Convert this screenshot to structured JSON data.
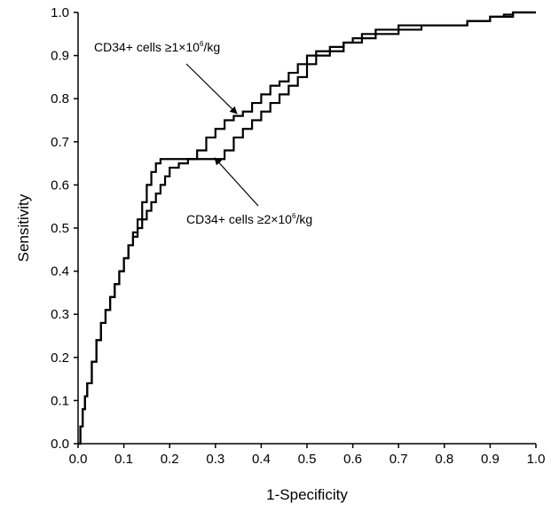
{
  "chart_data": {
    "type": "line",
    "title": "",
    "xlabel": "1-Specificity",
    "ylabel": "Sensitivity",
    "xlim": [
      0.0,
      1.0
    ],
    "ylim": [
      0.0,
      1.0
    ],
    "xticks": [
      "0.0",
      "0.1",
      "0.2",
      "0.3",
      "0.4",
      "0.5",
      "0.6",
      "0.7",
      "0.8",
      "0.9",
      "1.0"
    ],
    "yticks": [
      "0.0",
      "0.1",
      "0.2",
      "0.3",
      "0.4",
      "0.5",
      "0.6",
      "0.7",
      "0.8",
      "0.9",
      "1.0"
    ],
    "grid": false,
    "legend": "none",
    "line_color": "#000000",
    "series": [
      {
        "x": [
          0.0,
          0.005,
          0.01,
          0.015,
          0.02,
          0.03,
          0.04,
          0.05,
          0.06,
          0.07,
          0.08,
          0.09,
          0.1,
          0.11,
          0.12,
          0.13,
          0.14,
          0.15,
          0.16,
          0.17,
          0.18,
          0.2,
          0.22,
          0.24,
          0.26,
          0.28,
          0.3,
          0.32,
          0.34,
          0.36,
          0.38,
          0.4,
          0.42,
          0.44,
          0.46,
          0.48,
          0.5,
          0.52,
          0.55,
          0.58,
          0.6,
          0.62,
          0.65,
          0.7,
          0.75,
          0.8,
          0.85,
          0.9,
          0.93,
          0.95,
          0.97,
          1.0
        ],
        "y": [
          0.0,
          0.04,
          0.08,
          0.11,
          0.14,
          0.19,
          0.24,
          0.28,
          0.31,
          0.34,
          0.37,
          0.4,
          0.43,
          0.46,
          0.49,
          0.52,
          0.56,
          0.6,
          0.63,
          0.65,
          0.66,
          0.66,
          0.66,
          0.66,
          0.68,
          0.71,
          0.73,
          0.75,
          0.76,
          0.77,
          0.79,
          0.81,
          0.83,
          0.84,
          0.86,
          0.88,
          0.9,
          0.91,
          0.92,
          0.93,
          0.93,
          0.94,
          0.95,
          0.96,
          0.97,
          0.97,
          0.98,
          0.99,
          0.995,
          1.0,
          1.0,
          1.0
        ]
      },
      {
        "x": [
          0.0,
          0.005,
          0.01,
          0.015,
          0.02,
          0.03,
          0.04,
          0.05,
          0.06,
          0.07,
          0.08,
          0.09,
          0.1,
          0.11,
          0.12,
          0.13,
          0.14,
          0.15,
          0.16,
          0.17,
          0.18,
          0.19,
          0.2,
          0.22,
          0.24,
          0.26,
          0.28,
          0.3,
          0.32,
          0.34,
          0.36,
          0.38,
          0.4,
          0.42,
          0.44,
          0.46,
          0.48,
          0.5,
          0.52,
          0.55,
          0.58,
          0.6,
          0.62,
          0.65,
          0.7,
          0.75,
          0.8,
          0.85,
          0.9,
          0.93,
          0.95,
          0.97,
          1.0
        ],
        "y": [
          0.0,
          0.04,
          0.08,
          0.11,
          0.14,
          0.19,
          0.24,
          0.28,
          0.31,
          0.34,
          0.37,
          0.4,
          0.43,
          0.46,
          0.48,
          0.5,
          0.52,
          0.54,
          0.56,
          0.58,
          0.6,
          0.62,
          0.64,
          0.65,
          0.66,
          0.66,
          0.66,
          0.66,
          0.68,
          0.71,
          0.73,
          0.75,
          0.77,
          0.79,
          0.81,
          0.83,
          0.85,
          0.88,
          0.9,
          0.91,
          0.93,
          0.94,
          0.95,
          0.96,
          0.97,
          0.97,
          0.97,
          0.98,
          0.99,
          0.99,
          1.0,
          1.0,
          1.0
        ]
      }
    ],
    "annotations": [
      {
        "text": "CD34+ cells ≥1×10",
        "sup": "6",
        "tail": "/kg"
      },
      {
        "text": "CD34+ cells ≥2×10",
        "sup": "6",
        "tail": "/kg"
      }
    ]
  }
}
